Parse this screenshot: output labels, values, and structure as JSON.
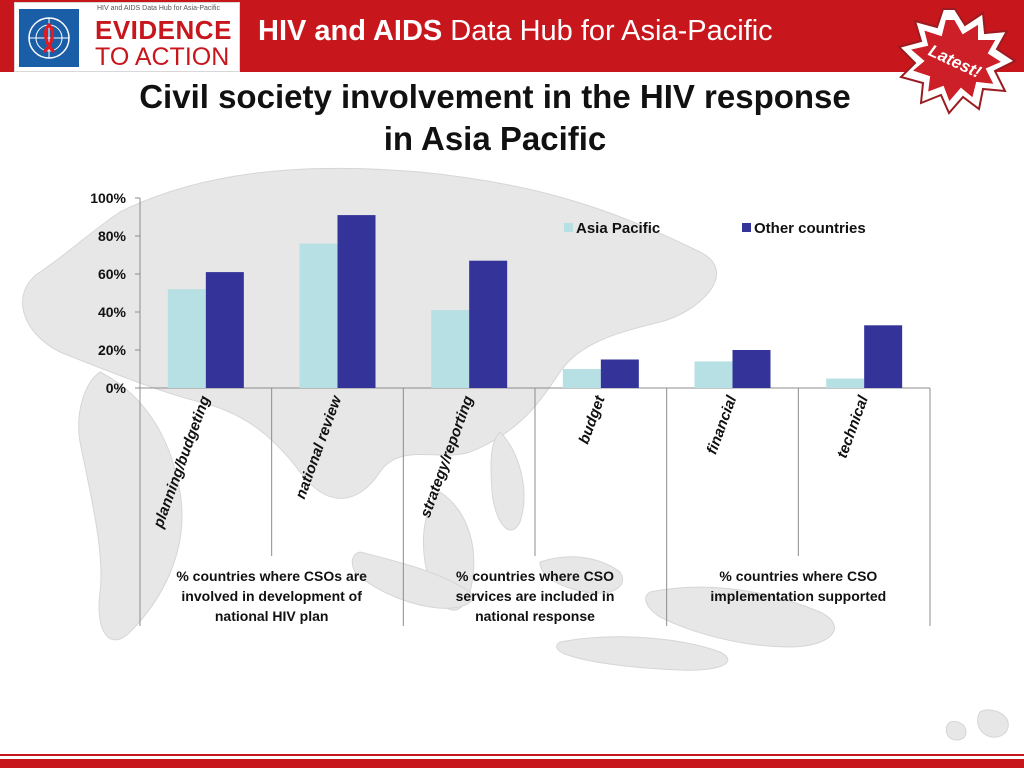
{
  "header": {
    "logo_tagline": "HIV and AIDS Data Hub for Asia-Pacific",
    "logo_line1": "EVIDENCE",
    "logo_line2": "TO ACTION",
    "title_bold": "HIV and AIDS",
    "title_rest": " Data Hub for Asia-Pacific",
    "badge_text": "Latest!"
  },
  "slide": {
    "title_line1": "Civil society involvement in the HIV response",
    "title_line2": "in Asia Pacific"
  },
  "colors": {
    "brand_red": "#c8161d",
    "asia_pacific": "#b7e0e4",
    "other_countries": "#33339a"
  },
  "chart_data": {
    "type": "bar",
    "title": "",
    "xlabel": "",
    "ylabel": "",
    "ylim": [
      0,
      100
    ],
    "y_ticks": [
      "0%",
      "20%",
      "40%",
      "60%",
      "80%",
      "100%"
    ],
    "y_tick_values": [
      0,
      20,
      40,
      60,
      80,
      100
    ],
    "legend_position": "top-right",
    "categories": [
      "planning/budgeting",
      "national review",
      "strategy/reporting",
      "budget",
      "financial",
      "technical"
    ],
    "series": [
      {
        "name": "Asia Pacific",
        "values": [
          52,
          76,
          41,
          10,
          14,
          5
        ]
      },
      {
        "name": "Other countries",
        "values": [
          61,
          91,
          67,
          15,
          20,
          33
        ]
      }
    ],
    "groups": [
      {
        "label": "% countries where CSOs are involved in development of national HIV plan",
        "lines": [
          "% countries where CSOs are",
          "involved in development of",
          "national HIV plan"
        ],
        "span": 2
      },
      {
        "label": "% countries where CSO services are included in national response",
        "lines": [
          "% countries where CSO",
          "services are included in",
          "national response"
        ],
        "span": 2
      },
      {
        "label": "% countries where CSO implementation supported",
        "lines": [
          "% countries where CSO",
          "implementation supported"
        ],
        "span": 2
      }
    ]
  }
}
